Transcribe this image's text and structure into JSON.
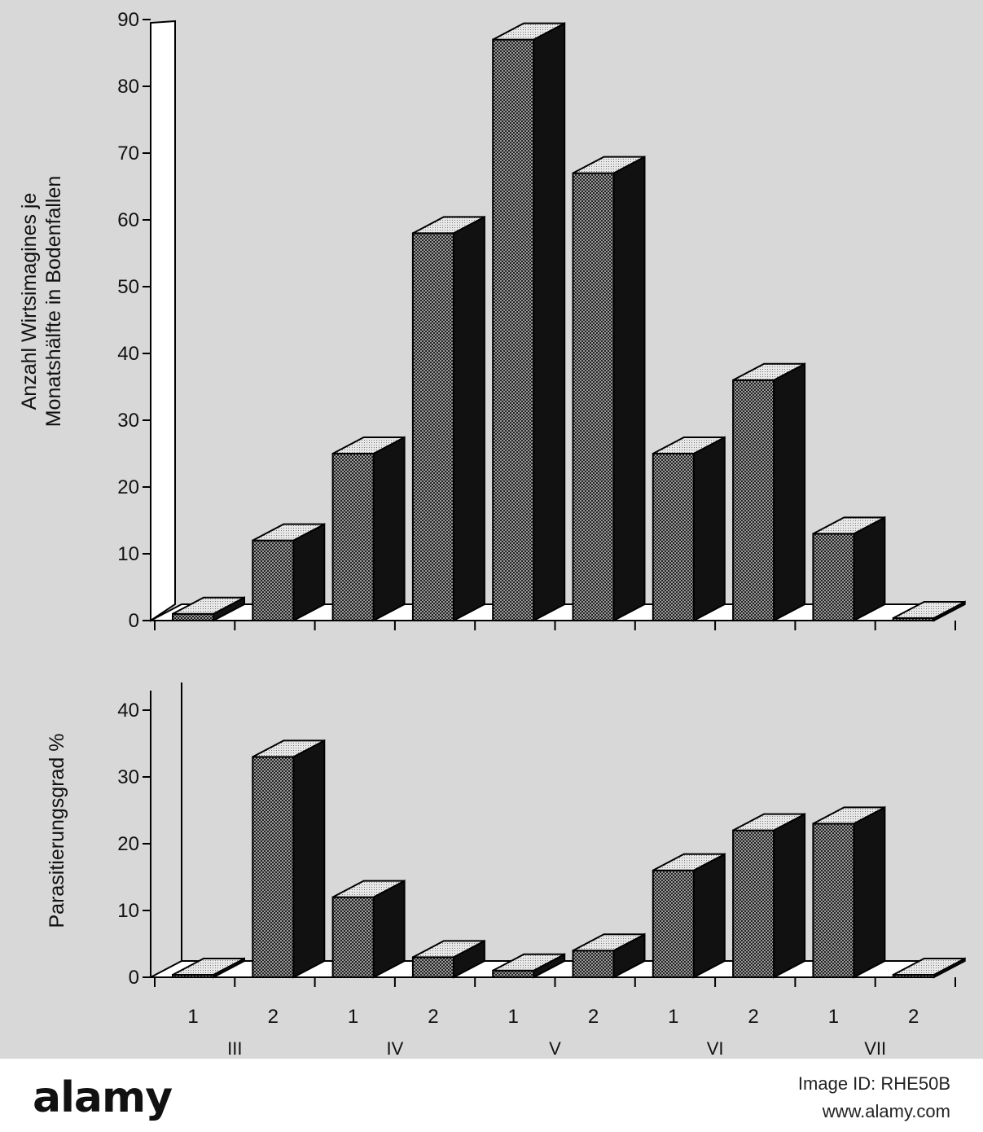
{
  "chart_data": [
    {
      "type": "bar",
      "ylabel_lines": [
        "Anzahl Wirtsimagines je",
        "Monatshälfte in Bodenfallen"
      ],
      "ylim": [
        0,
        90
      ],
      "yticks": [
        0,
        10,
        20,
        30,
        40,
        50,
        60,
        70,
        80,
        90
      ],
      "categories": [
        "III-1",
        "III-2",
        "IV-1",
        "IV-2",
        "V-1",
        "V-2",
        "VI-1",
        "VI-2",
        "VII-1",
        "VII-2"
      ],
      "values": [
        1,
        12,
        25,
        58,
        87,
        67,
        25,
        36,
        13,
        0
      ]
    },
    {
      "type": "bar",
      "ylabel": "Parasitierungsgrad %",
      "ylim": [
        0,
        40
      ],
      "yticks": [
        0,
        10,
        20,
        30,
        40
      ],
      "categories": [
        "III-1",
        "III-2",
        "IV-1",
        "IV-2",
        "V-1",
        "V-2",
        "VI-1",
        "VI-2",
        "VII-1",
        "VII-2"
      ],
      "values": [
        0,
        33,
        12,
        3,
        1,
        4,
        16,
        22,
        23,
        0
      ]
    }
  ],
  "x_axis": {
    "half_labels": [
      "1",
      "2",
      "1",
      "2",
      "1",
      "2",
      "1",
      "2",
      "1",
      "2"
    ],
    "month_labels": [
      "III",
      "IV",
      "V",
      "VI",
      "VII"
    ]
  },
  "footer": {
    "brand": "alamy",
    "image_id": "Image ID: RHE50B",
    "site": "www.alamy.com"
  }
}
